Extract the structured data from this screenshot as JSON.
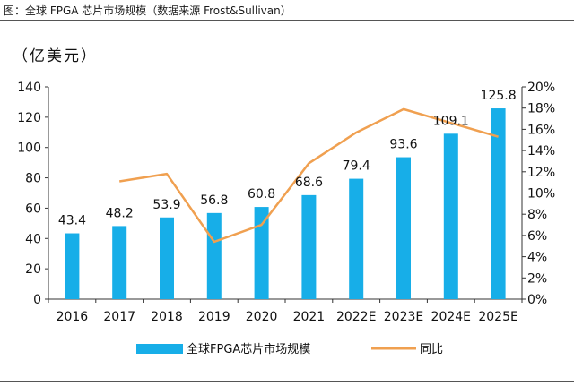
{
  "figure_title": "图：全球 FPGA 芯片市场规模（数据来源 Frost&Sullivan）",
  "colors": {
    "bar": "#17aee8",
    "line": "#f0a050",
    "axis": "#333333"
  },
  "chart_data": {
    "type": "bar",
    "categories": [
      "2016",
      "2017",
      "2018",
      "2019",
      "2020",
      "2021",
      "2022E",
      "2023E",
      "2024E",
      "2025E"
    ],
    "unit_label": "（亿美元）",
    "ylim": [
      0,
      140
    ],
    "yticks": [
      "0",
      "20",
      "40",
      "60",
      "80",
      "100",
      "120",
      "140"
    ],
    "y2lim": [
      0,
      20
    ],
    "y2ticks": [
      "0%",
      "2%",
      "4%",
      "6%",
      "8%",
      "10%",
      "12%",
      "14%",
      "16%",
      "18%",
      "20%"
    ],
    "series": [
      {
        "name": "全球FPGA芯片市场规模",
        "type": "bar",
        "axis": "left",
        "values": [
          43.4,
          48.2,
          53.9,
          56.8,
          60.8,
          68.6,
          79.4,
          93.6,
          109.1,
          125.8
        ],
        "labels": [
          "43.4",
          "48.2",
          "53.9",
          "56.8",
          "60.8",
          "68.6",
          "79.4",
          "93.6",
          "109.1",
          "125.8"
        ]
      },
      {
        "name": "同比",
        "type": "line",
        "axis": "right",
        "values": [
          null,
          11.1,
          11.8,
          5.4,
          7.0,
          12.8,
          15.7,
          17.9,
          16.6,
          15.3
        ]
      }
    ],
    "legend_position": "bottom",
    "grid": false
  }
}
